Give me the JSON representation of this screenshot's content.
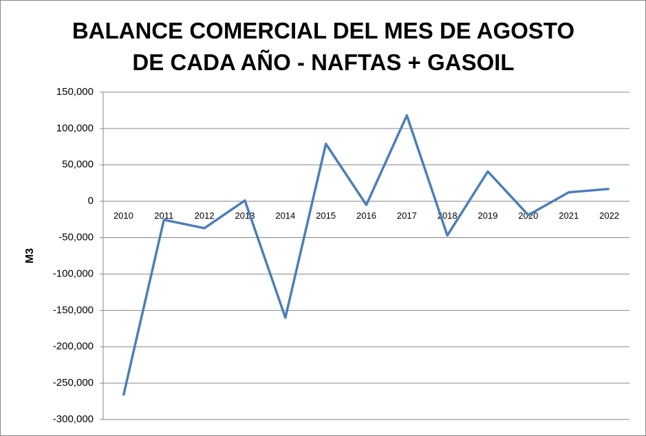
{
  "chart_data": {
    "type": "line",
    "title": "BALANCE COMERCIAL DEL MES DE AGOSTO DE CADA AÑO - NAFTAS + GASOIL",
    "y_label": "M3",
    "categories": [
      "2010",
      "2011",
      "2012",
      "2013",
      "2014",
      "2015",
      "2016",
      "2017",
      "2018",
      "2019",
      "2020",
      "2021",
      "2022"
    ],
    "series": [
      {
        "name": "M3",
        "color": "#4a7ebb",
        "values": [
          -267000,
          -25500,
          -37000,
          1000,
          -160000,
          79000,
          -5000,
          118000,
          -47000,
          41000,
          -19000,
          12300,
          17000
        ]
      }
    ],
    "ylim": [
      -300000,
      150000
    ],
    "yticks": [
      {
        "value": -300000,
        "label": "-300,000"
      },
      {
        "value": -250000,
        "label": "-250,000"
      },
      {
        "value": -200000,
        "label": "-200,000"
      },
      {
        "value": -150000,
        "label": "-150,000"
      },
      {
        "value": -100000,
        "label": "-100,000"
      },
      {
        "value": -50000,
        "label": "-50,000"
      },
      0,
      {
        "value": 50000,
        "label": "50,000"
      },
      {
        "value": 100000,
        "label": "100,000"
      },
      {
        "value": 150000,
        "label": "150,000"
      }
    ],
    "grid": true
  }
}
